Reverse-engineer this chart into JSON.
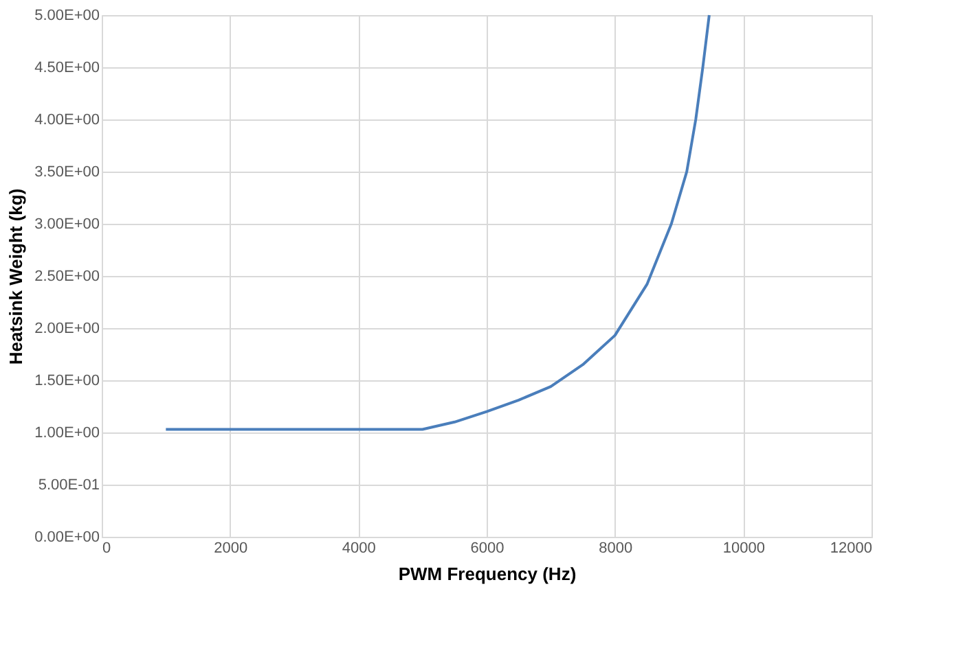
{
  "chart_data": {
    "type": "line",
    "xlabel": "PWM Frequency (Hz)",
    "ylabel": "Heatsink Weight (kg)",
    "x": [
      1000,
      5000,
      5500,
      6000,
      6500,
      7000,
      7500,
      8000,
      8500,
      8880,
      9120,
      9260,
      9370,
      9470
    ],
    "series": [
      {
        "color": "#4a7ebb",
        "values": [
          1.03,
          1.03,
          1.1,
          1.2,
          1.31,
          1.44,
          1.65,
          1.93,
          2.42,
          3.0,
          3.5,
          4.0,
          4.5,
          5.0
        ]
      }
    ],
    "xlim": [
      0,
      12000
    ],
    "xticks": [
      0,
      2000,
      4000,
      6000,
      8000,
      10000,
      12000
    ],
    "ylim": [
      0,
      5
    ],
    "yticks": [
      {
        "value": 0,
        "label": "0.00E+00"
      },
      {
        "value": 0.5,
        "label": "5.00E-01"
      },
      {
        "value": 1,
        "label": "1.00E+00"
      },
      {
        "value": 1.5,
        "label": "1.50E+00"
      },
      {
        "value": 2,
        "label": "2.00E+00"
      },
      {
        "value": 2.5,
        "label": "2.50E+00"
      },
      {
        "value": 3,
        "label": "3.00E+00"
      },
      {
        "value": 3.5,
        "label": "3.50E+00"
      },
      {
        "value": 4,
        "label": "4.00E+00"
      },
      {
        "value": 4.5,
        "label": "4.50E+00"
      },
      {
        "value": 5,
        "label": "5.00E+00"
      }
    ],
    "grid": true,
    "marker": "none",
    "line_style": "solid"
  }
}
